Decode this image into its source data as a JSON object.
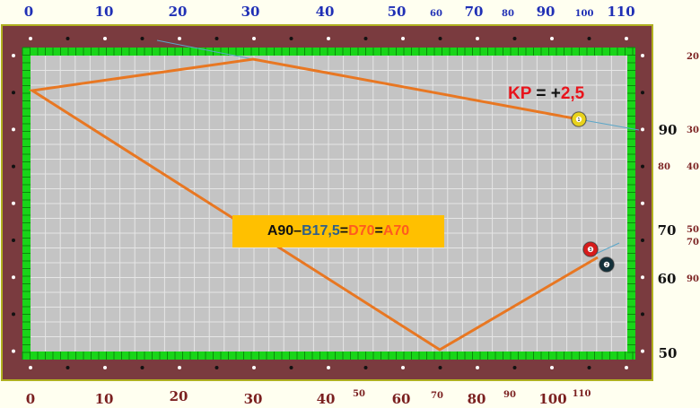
{
  "colors": {
    "rail": "#7a3b3f",
    "cushion": "#19d419",
    "cloth": "#c4c4c4",
    "grid": "#e6e6e6",
    "path": "#e87722",
    "aim": "#5aa6c8",
    "top_labels": "#1f2fb5",
    "bottom_labels": "#7a1f1f",
    "formula_bg": "#ffc000"
  },
  "scale_top": [
    {
      "text": "0",
      "size": "big"
    },
    {
      "text": "10",
      "size": "big"
    },
    {
      "text": "20",
      "size": "big"
    },
    {
      "text": "30",
      "size": "big"
    },
    {
      "text": "40",
      "size": "big"
    },
    {
      "text": "50",
      "size": "big"
    },
    {
      "text": "60",
      "size": "small"
    },
    {
      "text": "70",
      "size": "big"
    },
    {
      "text": "80",
      "size": "small"
    },
    {
      "text": "90",
      "size": "big"
    },
    {
      "text": "100",
      "size": "small"
    },
    {
      "text": "110",
      "size": "big"
    }
  ],
  "scale_bottom": [
    {
      "text": "0",
      "size": "big"
    },
    {
      "text": "10",
      "size": "big"
    },
    {
      "text": "20",
      "size": "big"
    },
    {
      "text": "30",
      "size": "big"
    },
    {
      "text": "40",
      "size": "big"
    },
    {
      "text": "50",
      "size": "small"
    },
    {
      "text": "60",
      "size": "big"
    },
    {
      "text": "70",
      "size": "small"
    },
    {
      "text": "80",
      "size": "big"
    },
    {
      "text": "90",
      "size": "small"
    },
    {
      "text": "100",
      "size": "big"
    },
    {
      "text": "110",
      "size": "small"
    }
  ],
  "scale_right": [
    {
      "text": "20",
      "size": "small"
    },
    {
      "text": "90",
      "size": "big"
    },
    {
      "text": "30",
      "size": "small"
    },
    {
      "text": "80",
      "size": "small"
    },
    {
      "text": "40",
      "size": "small"
    },
    {
      "text": "70",
      "size": "big"
    },
    {
      "text": "50",
      "size": "small"
    },
    {
      "text": "70",
      "size": "small"
    },
    {
      "text": "60",
      "size": "big"
    },
    {
      "text": "90",
      "size": "small"
    },
    {
      "text": "50",
      "size": "big"
    }
  ],
  "formula": {
    "parts": [
      {
        "text": "A90",
        "color": "#111111"
      },
      {
        "text": " – ",
        "color": "#111111"
      },
      {
        "text": "B17,5",
        "color": "#2f5f8a"
      },
      {
        "text": " = ",
        "color": "#111111"
      },
      {
        "text": "D70",
        "color": "#ff5a1f"
      },
      {
        "text": " = ",
        "color": "#111111"
      },
      {
        "text": "A70",
        "color": "#ff5a1f"
      }
    ]
  },
  "kp": {
    "label": "KP",
    "eq": " = ",
    "sign": "+",
    "value": "2,5",
    "label_color": "#e8141c",
    "eq_color": "#111111",
    "value_color": "#e8141c"
  },
  "balls": [
    {
      "name": "ball-1-yellow",
      "number": "1",
      "color": "#e8d21c"
    },
    {
      "name": "ball-3-red",
      "number": "3",
      "color": "#d61c1c"
    },
    {
      "name": "ball-2-black",
      "number": "2",
      "color": "#13303a"
    }
  ]
}
